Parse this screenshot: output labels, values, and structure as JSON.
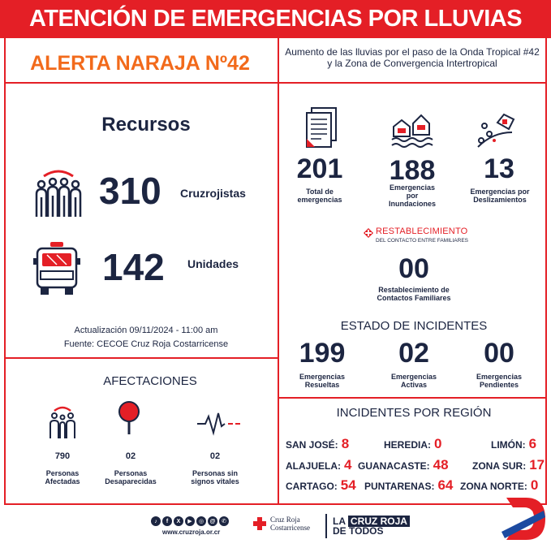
{
  "header": {
    "title": "ATENCIÓN DE EMERGENCIAS POR LLUVIAS"
  },
  "alert": {
    "label": "ALERTA NARAJA Nº42",
    "cause": "Aumento de las lluvias por el paso de la Onda Tropical #42 y la Zona de Convergencia Intertropical"
  },
  "recursos": {
    "title": "Recursos",
    "cruzrojistas_value": "310",
    "cruzrojistas_label": "Cruzrojistas",
    "unidades_value": "142",
    "unidades_label": "Unidades",
    "update": "Actualización 09/11/2024 - 11:00 am",
    "source": "Fuente: CECOE Cruz Roja Costarricense"
  },
  "emergencias": {
    "total_value": "201",
    "total_label": "Total de emergencias",
    "inundaciones_value": "188",
    "inundaciones_label": "Emergencias por Inundaciones",
    "deslizamientos_value": "13",
    "deslizamientos_label": "Emergencias por Deslizamientos"
  },
  "restablecimiento": {
    "logo_title": "RESTABLECIMIENTO",
    "logo_subtitle": "DEL CONTACTO ENTRE FAMILIARES",
    "value": "00",
    "label": "Restablecimiento de Contactos Familiares"
  },
  "estado": {
    "title": "ESTADO DE INCIDENTES",
    "resueltas_value": "199",
    "resueltas_label": "Emergencias Resueltas",
    "activas_value": "02",
    "activas_label": "Emergencias Activas",
    "pendientes_value": "00",
    "pendientes_label": "Emergencias Pendientes"
  },
  "afectaciones": {
    "title": "AFECTACIONES",
    "afectadas_value": "790",
    "afectadas_label": "Personas Afectadas",
    "desaparecidas_value": "02",
    "desaparecidas_label": "Personas Desaparecidas",
    "sin_signos_value": "02",
    "sin_signos_label": "Personas sin signos vitales"
  },
  "regiones": {
    "title": "INCIDENTES POR REGIÓN",
    "items": [
      {
        "name": "SAN JOSÉ:",
        "value": "8"
      },
      {
        "name": "HEREDIA:",
        "value": "0"
      },
      {
        "name": "LIMÓN:",
        "value": "6"
      },
      {
        "name": "ALAJUELA:",
        "value": "4"
      },
      {
        "name": "GUANACASTE:",
        "value": "48"
      },
      {
        "name": "ZONA SUR:",
        "value": "17"
      },
      {
        "name": "CARTAGO:",
        "value": "54"
      },
      {
        "name": "PUNTARENAS:",
        "value": "64"
      },
      {
        "name": "ZONA NORTE:",
        "value": "0"
      }
    ]
  },
  "footer": {
    "website": "www.cruzroja.or.cr",
    "org_line1": "Cruz Roja",
    "org_line2": "Costarricense",
    "slogan_line1a": "LA",
    "slogan_line1b": "CRUZ ROJA",
    "slogan_line2": "DE TODOS"
  },
  "colors": {
    "red": "#e41f26",
    "orange": "#f26a1b",
    "navy": "#1c2541"
  }
}
